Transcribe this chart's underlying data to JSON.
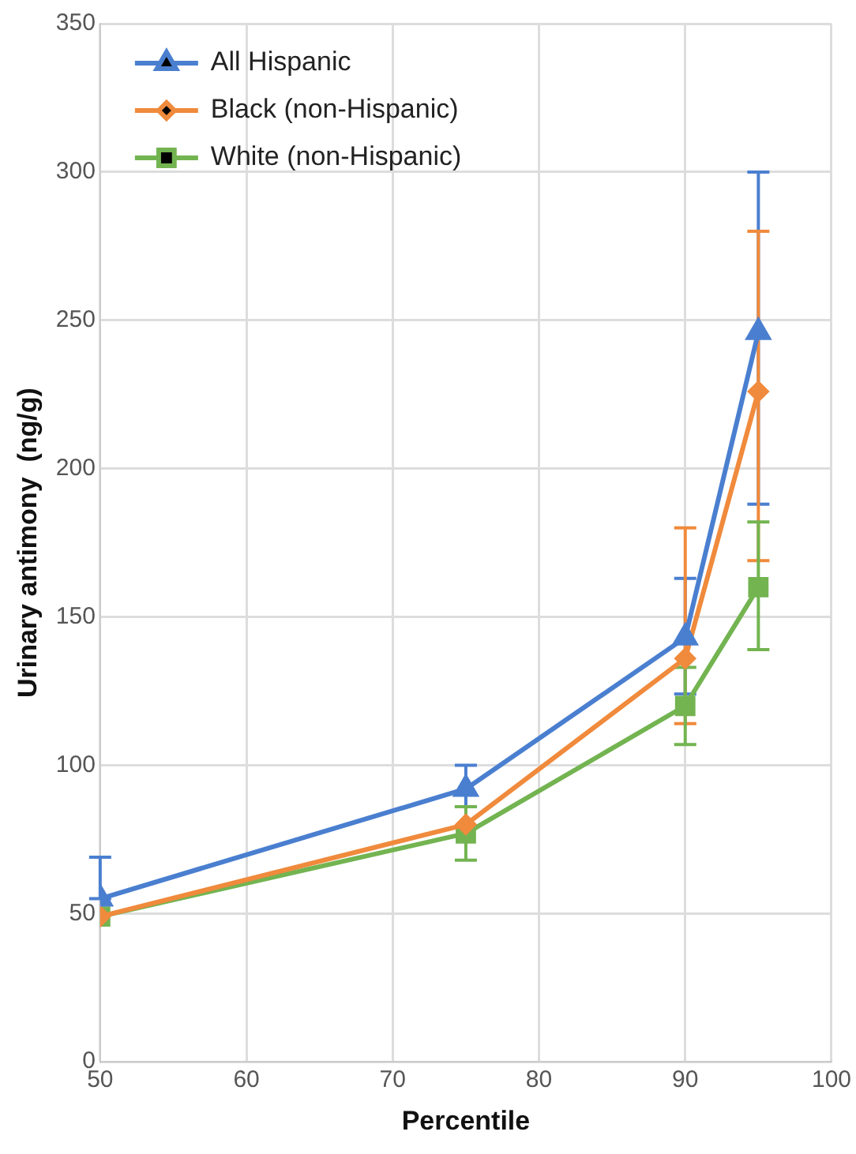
{
  "chart_data": {
    "type": "line",
    "xlabel": "Percentile",
    "ylabel": "Urinary antimony  (ng/g)",
    "x": [
      50,
      75,
      90,
      95
    ],
    "series": [
      {
        "name": "All Hispanic",
        "color": "#4a7fd0",
        "marker": "triangle",
        "values": [
          55,
          92,
          143,
          246
        ],
        "errors": [
          [
            55,
            69
          ],
          [
            86,
            100
          ],
          [
            124,
            163
          ],
          [
            188,
            300
          ]
        ]
      },
      {
        "name": "Black (non-Hispanic)",
        "color": "#f08a3c",
        "marker": "diamond",
        "values": [
          49,
          80,
          136,
          226
        ],
        "errors": [
          null,
          null,
          [
            114,
            180
          ],
          [
            169,
            280
          ]
        ]
      },
      {
        "name": "White (non-Hispanic)",
        "color": "#73b451",
        "marker": "square",
        "values": [
          49,
          77,
          120,
          160
        ],
        "errors": [
          null,
          [
            68,
            86
          ],
          [
            107,
            133
          ],
          [
            139,
            182
          ]
        ]
      }
    ],
    "xlim": [
      50,
      100
    ],
    "xticks": [
      50,
      60,
      70,
      80,
      90,
      100
    ],
    "ylim": [
      0,
      350
    ],
    "yticks": [
      0,
      50,
      100,
      150,
      200,
      250,
      300,
      350
    ],
    "grid": true,
    "legend": "top left",
    "line_style": "solid"
  }
}
